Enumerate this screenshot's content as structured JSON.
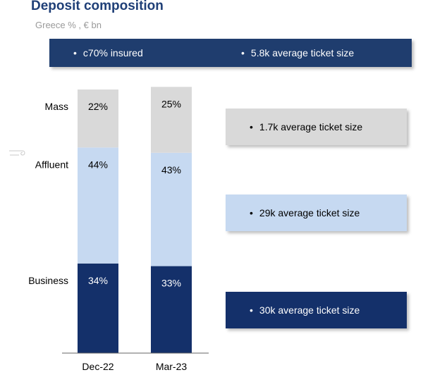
{
  "header": {
    "title": "Deposit composition",
    "subtitle": "Greece % , € bn"
  },
  "top_box": {
    "items": [
      "c70% insured",
      "5.8k average ticket size"
    ],
    "color": "#1f3d6e"
  },
  "side_boxes": [
    {
      "segment": "Mass",
      "text": "1.7k average ticket size",
      "color": "#d9d9d9",
      "text_color": "#000000"
    },
    {
      "segment": "Affluent",
      "text": "29k average ticket size",
      "color": "#c6d9f1",
      "text_color": "#000000"
    },
    {
      "segment": "Business",
      "text": "30k average ticket size",
      "color": "#14306a",
      "text_color": "#ffffff"
    }
  ],
  "chart_data": {
    "type": "bar",
    "stacked": true,
    "categories": [
      "Dec-22",
      "Mar-23"
    ],
    "series": [
      {
        "name": "Business",
        "values": [
          34,
          33
        ],
        "value_labels": [
          "34%",
          "33%"
        ],
        "color": "#14306a",
        "label_color": "#ffffff"
      },
      {
        "name": "Affluent",
        "values": [
          44,
          43
        ],
        "value_labels": [
          "44%",
          "43%"
        ],
        "color": "#c6d9f1",
        "label_color": "#000000"
      },
      {
        "name": "Mass",
        "values": [
          22,
          25
        ],
        "value_labels": [
          "22%",
          "25%"
        ],
        "color": "#d9d9d9",
        "label_color": "#000000"
      }
    ],
    "ylim": [
      0,
      100
    ],
    "unit": "%",
    "grid": false
  }
}
